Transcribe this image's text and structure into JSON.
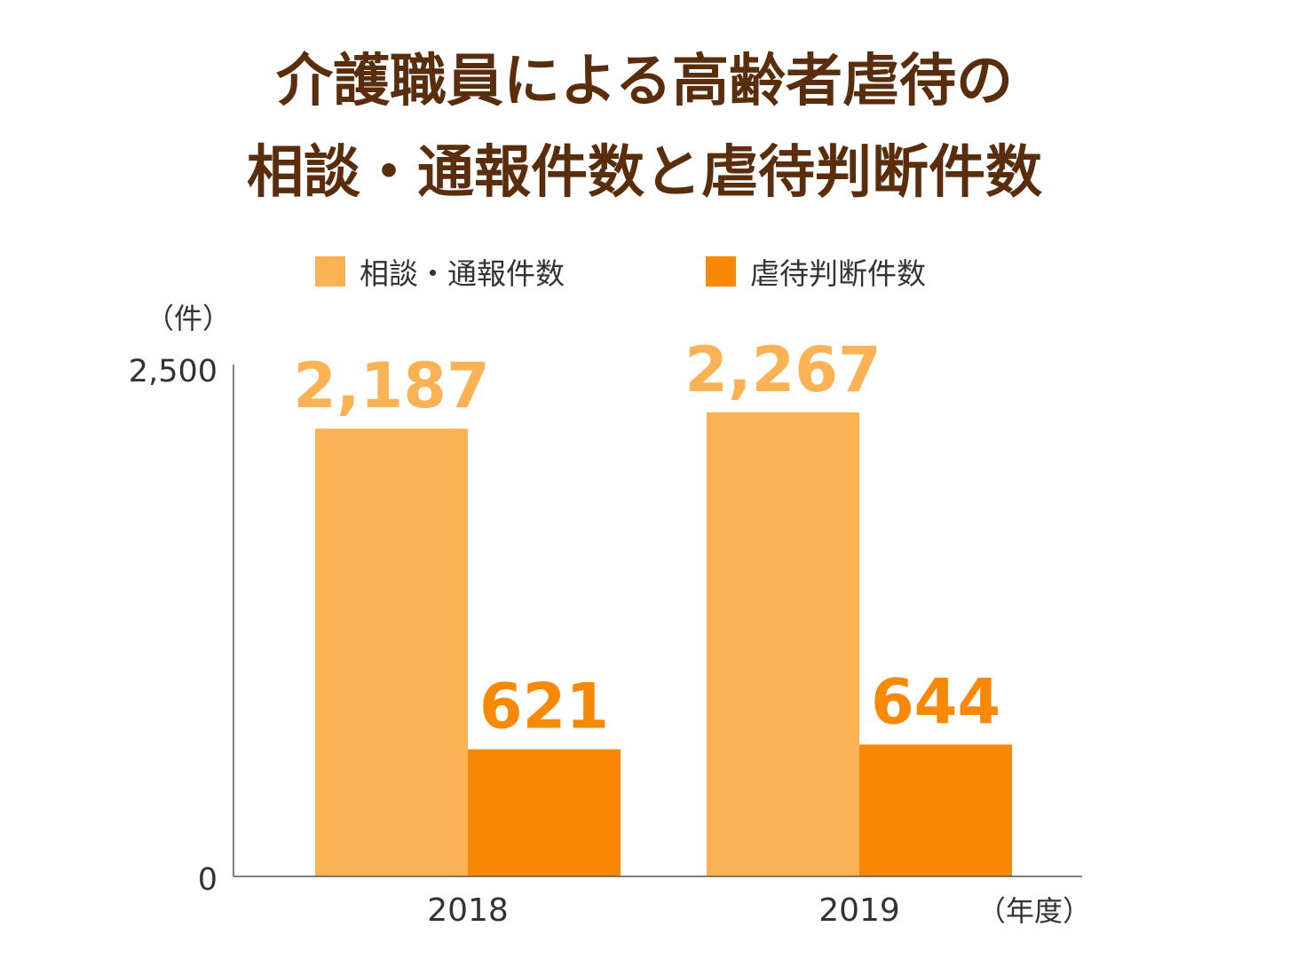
{
  "title": {
    "line1": "介護職員による高齢者虐待の",
    "line2": "相談・通報件数と虐待判断件数"
  },
  "legend": [
    {
      "label": "相談・通報件数",
      "color": "#fbb254"
    },
    {
      "label": "虐待判断件数",
      "color": "#f98807"
    }
  ],
  "axis": {
    "y_unit": "（件）",
    "x_unit": "（年度）",
    "y_max_label": "2,500",
    "y_min_label": "0"
  },
  "chart_data": {
    "type": "bar",
    "title": "介護職員による高齢者虐待の相談・通報件数と虐待判断件数",
    "categories": [
      "2018",
      "2019"
    ],
    "series": [
      {
        "name": "相談・通報件数",
        "values": [
          2187,
          2267
        ],
        "labels": [
          "2,187",
          "2,267"
        ],
        "color": "#fbb254"
      },
      {
        "name": "虐待判断件数",
        "values": [
          621,
          644
        ],
        "labels": [
          "621",
          "644"
        ],
        "color": "#f98807"
      }
    ],
    "ylim": [
      0,
      2500
    ],
    "xlabel": "（年度）",
    "ylabel": "（件）",
    "grid": false,
    "legend_position": "top"
  }
}
